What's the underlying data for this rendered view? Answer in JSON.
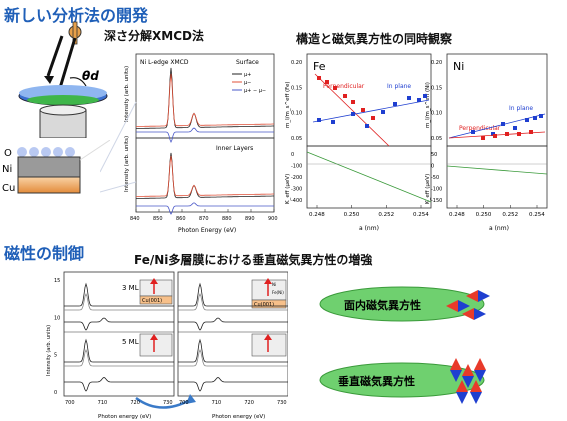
{
  "headings": {
    "new_method": "新しい分析法の開発",
    "depth_xmcd": "深さ分解XMCD法",
    "simultaneous": "構造と磁気異方性の同時観察",
    "magnetism_control": "磁性の制御",
    "fe_ni_enhance": "Fe/Ni多層膜における垂直磁気異方性の増強"
  },
  "apparatus": {
    "theta_label": "θd",
    "layer_labels": [
      "O",
      "Ni",
      "Cu"
    ]
  },
  "xmcd_panel": {
    "title": "Ni L-edge XMCD",
    "top_label": "Surface",
    "bottom_label": "Inner Layers",
    "ylabel": "Intensity (arb. units)",
    "xlabel": "Photon Energy (eV)",
    "xticks": [
      "840",
      "850",
      "860",
      "870",
      "880",
      "890",
      "900"
    ],
    "legend": [
      "μ+",
      "μ−",
      "μ+ − μ−"
    ],
    "colors": {
      "mu_plus": "#222222",
      "mu_minus": "#e0523a",
      "diff": "#4a58c8"
    }
  },
  "anisotropy_panels": {
    "fe": {
      "label": "Fe",
      "series": [
        "Perpendicular",
        "In plane"
      ],
      "ylabel_top": "m_l/m_s^eff (Fe)",
      "ylabel_bottom": "K_eff (μeV)",
      "yticks_top": [
        "0.20",
        "0.15",
        "0.10",
        "0.05"
      ],
      "yticks_bottom": [
        "0",
        "-100",
        "-200",
        "-300",
        "-400"
      ]
    },
    "ni": {
      "label": "Ni",
      "series": [
        "Perpendicular",
        "In plane"
      ],
      "ylabel_top": "m_l/m_s^eff (Ni)",
      "ylabel_bottom": "K_eff (μeV)",
      "yticks_top": [
        "0.20",
        "0.15",
        "0.10",
        "0.05"
      ],
      "yticks_bottom": [
        "50",
        "0",
        "-50",
        "-100",
        "-150"
      ]
    },
    "xticks": [
      "0.248",
      "0.250",
      "0.252",
      "0.254"
    ],
    "xlabel": "a (nm)",
    "colors": {
      "perp": "#e02020",
      "inplane": "#1f3fd0",
      "keff": "#3a9a3a"
    }
  },
  "spectra_panels": {
    "left": {
      "labels": [
        "3 ML",
        "5 ML"
      ],
      "inset": "Cu(001)"
    },
    "right": {
      "inset_top": "Ni",
      "inset_cu": "Cu(001)",
      "inset_note": "Fe(Ni)"
    },
    "ylabel": "Intensity (arb. units)",
    "xlabel": "Photon energy (eV)",
    "xticks": [
      "700",
      "710",
      "720",
      "730"
    ],
    "yticks": [
      "15",
      "10",
      "5",
      "0"
    ]
  },
  "anisotropy_bubbles": {
    "in_plane": "面内磁気異方性",
    "perpendicular": "垂直磁気異方性",
    "colors": {
      "bubble": "#6fd06f",
      "red": "#e83a2a",
      "blue": "#1f3fd0"
    }
  }
}
